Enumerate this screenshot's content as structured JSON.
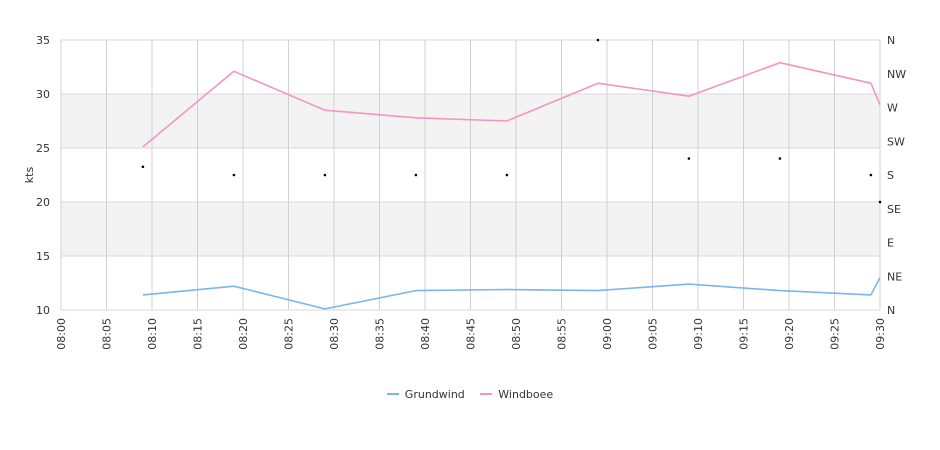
{
  "chart_data": {
    "type": "line",
    "ylabel": "kts",
    "ylim": [
      10,
      35
    ],
    "yticks": [
      "10",
      "15",
      "20",
      "25",
      "30",
      "35"
    ],
    "xlabels": [
      "08:00",
      "08:05",
      "08:10",
      "08:15",
      "08:20",
      "08:25",
      "08:30",
      "08:35",
      "08:40",
      "08:45",
      "08:50",
      "08:55",
      "09:00",
      "09:05",
      "09:10",
      "09:15",
      "09:20",
      "09:25",
      "09:30"
    ],
    "y2_labels": [
      "N",
      "NE",
      "E",
      "SE",
      "S",
      "SW",
      "W",
      "NW",
      "N"
    ],
    "grid_bands": [
      [
        15,
        20
      ],
      [
        25,
        30
      ]
    ],
    "legend_position": "bottom-center",
    "series": [
      {
        "name": "Grundwind",
        "color": "#7cb5ec",
        "x": [
          "08:09",
          "08:19",
          "08:29",
          "08:39",
          "08:49",
          "08:59",
          "09:09",
          "09:19",
          "09:29",
          "09:30"
        ],
        "values": [
          11.4,
          12.2,
          10.1,
          11.8,
          11.9,
          11.8,
          12.4,
          11.8,
          11.4,
          13.0
        ]
      },
      {
        "name": "Windboee",
        "color": "#f494c4",
        "x": [
          "08:09",
          "08:19",
          "08:29",
          "08:39",
          "08:49",
          "08:59",
          "09:09",
          "09:19",
          "09:29",
          "09:30"
        ],
        "values": [
          25.1,
          32.1,
          28.5,
          27.8,
          27.5,
          31.0,
          29.8,
          32.9,
          31.0,
          29.0
        ]
      }
    ],
    "direction_points": {
      "x": [
        "08:09",
        "08:19",
        "08:29",
        "08:39",
        "08:49",
        "08:59",
        "09:09",
        "09:19",
        "09:29",
        "09:30"
      ],
      "degrees": [
        191,
        180,
        180,
        180,
        180,
        360,
        202,
        202,
        180,
        144
      ]
    }
  }
}
